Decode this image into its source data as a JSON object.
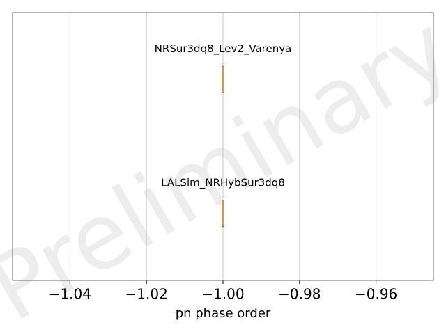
{
  "chart_data": {
    "type": "box",
    "xlabel": "pn phase order",
    "watermark": "Preliminary",
    "categories": [
      "NRSur3dq8_Lev2_Varenya",
      "LALSim_NRHybSur3dq8"
    ],
    "values": [
      -1.0,
      -1.0
    ],
    "color": "#c49a6c",
    "edgecolor": "#8c6a4a",
    "xlim": [
      -1.055,
      -0.945
    ],
    "xticks": [
      {
        "value": -1.04,
        "label": "−1.04"
      },
      {
        "value": -1.02,
        "label": "−1.02"
      },
      {
        "value": -1.0,
        "label": "−1.00"
      },
      {
        "value": -0.98,
        "label": "−0.98"
      },
      {
        "value": -0.96,
        "label": "−0.96"
      }
    ],
    "grid": true
  }
}
